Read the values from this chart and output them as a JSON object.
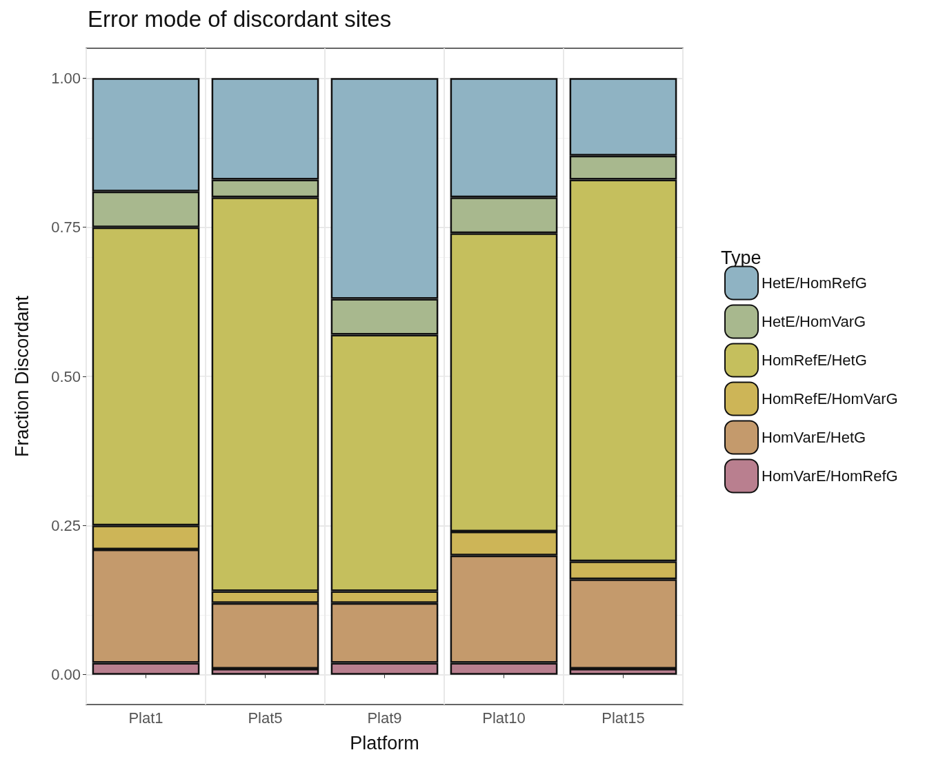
{
  "chart_data": {
    "type": "bar",
    "title": "Error mode of discordant sites",
    "xlabel": "Platform",
    "ylabel": "Fraction Discordant",
    "legend_title": "Type",
    "categories": [
      "Plat1",
      "Plat5",
      "Plat9",
      "Plat10",
      "Plat15"
    ],
    "stacked": true,
    "series": [
      {
        "name": "HomVarE/HomRefG",
        "color": "#b97f8f",
        "values": [
          0.02,
          0.01,
          0.02,
          0.02,
          0.01
        ]
      },
      {
        "name": "HomVarE/HetG",
        "color": "#c49a6c",
        "values": [
          0.19,
          0.11,
          0.1,
          0.18,
          0.15
        ]
      },
      {
        "name": "HomRefE/HomVarG",
        "color": "#cdb557",
        "values": [
          0.04,
          0.02,
          0.02,
          0.04,
          0.03
        ]
      },
      {
        "name": "HomRefE/HetG",
        "color": "#c5bf5d",
        "values": [
          0.5,
          0.66,
          0.43,
          0.5,
          0.64
        ]
      },
      {
        "name": "HetE/HomVarG",
        "color": "#a8b88e",
        "values": [
          0.06,
          0.03,
          0.06,
          0.06,
          0.04
        ]
      },
      {
        "name": "HetE/HomRefG",
        "color": "#8fb3c3",
        "values": [
          0.19,
          0.17,
          0.37,
          0.2,
          0.13
        ]
      }
    ],
    "ylim": [
      -0.05,
      1.05
    ],
    "yticks": [
      {
        "value": 0,
        "label": "0.00"
      },
      {
        "value": 0.25,
        "label": "0.25"
      },
      {
        "value": 0.5,
        "label": "0.50"
      },
      {
        "value": 0.75,
        "label": "0.75"
      },
      {
        "value": 1,
        "label": "1.00"
      }
    ],
    "grid": true,
    "legend": "right"
  }
}
